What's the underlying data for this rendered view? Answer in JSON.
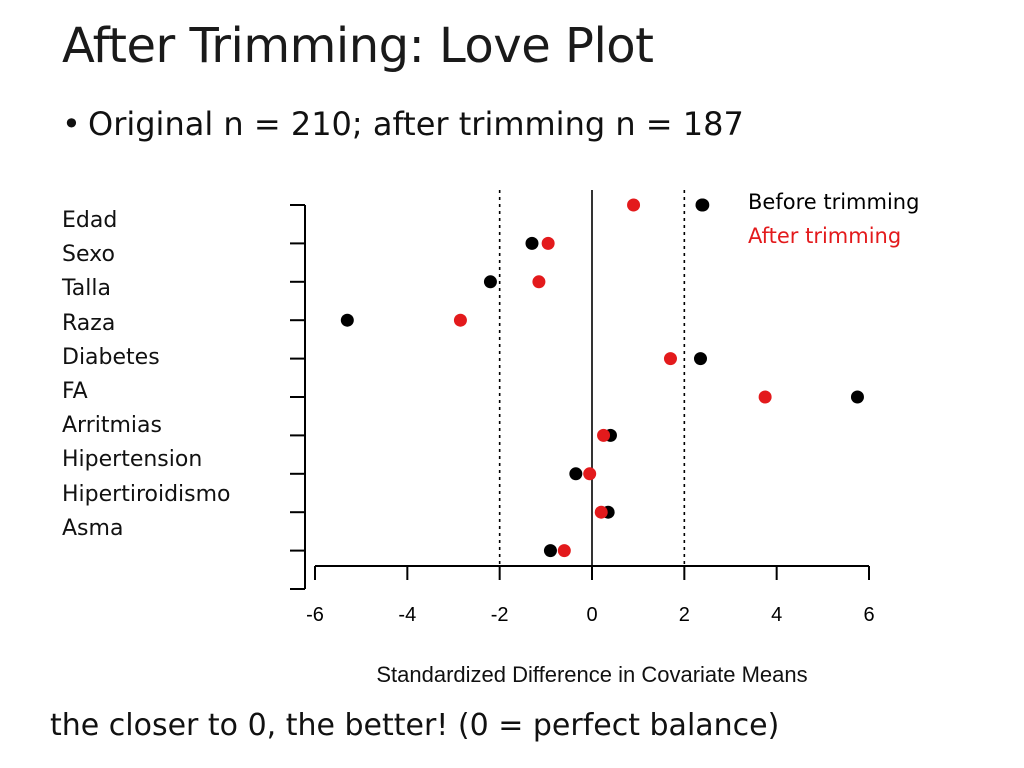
{
  "slide": {
    "title": "After Trimming: Love Plot",
    "bullet_symbol": "•",
    "bullet": "Original n = 210; after trimming n = 187",
    "footer": "the closer to 0, the better! (0 = perfect balance)"
  },
  "colors": {
    "before": "#000000",
    "after": "#e31a1c"
  },
  "chart_data": {
    "type": "scatter",
    "title": "",
    "xlabel": "Standardized Difference in Covariate Means",
    "ylabel": "",
    "xlim": [
      -6,
      6
    ],
    "xticks": [
      "-6",
      "-4",
      "-2",
      "0",
      "2",
      "4",
      "6"
    ],
    "reference_lines": [
      {
        "x": 0,
        "style": "solid"
      },
      {
        "x": -2,
        "style": "dotted"
      },
      {
        "x": 2,
        "style": "dotted"
      }
    ],
    "legend": {
      "placement": "top-right",
      "before_label": "Before trimming",
      "after_label": "After trimming"
    },
    "covariates": [
      "Edad",
      "Sexo",
      "Talla",
      "Raza",
      "Diabetes",
      "FA",
      "Arritmias",
      "Hipertension",
      "Hipertiroidismo",
      "Asma"
    ],
    "series": [
      {
        "name": "Before trimming",
        "color": "#000000",
        "values": [
          2.4,
          -1.3,
          -2.2,
          -5.3,
          2.35,
          5.75,
          0.4,
          -0.35,
          0.35,
          -0.9
        ]
      },
      {
        "name": "After trimming",
        "color": "#e31a1c",
        "values": [
          0.9,
          -0.95,
          -1.15,
          -2.85,
          1.7,
          3.75,
          0.25,
          -0.05,
          0.2,
          -0.6
        ]
      }
    ]
  }
}
